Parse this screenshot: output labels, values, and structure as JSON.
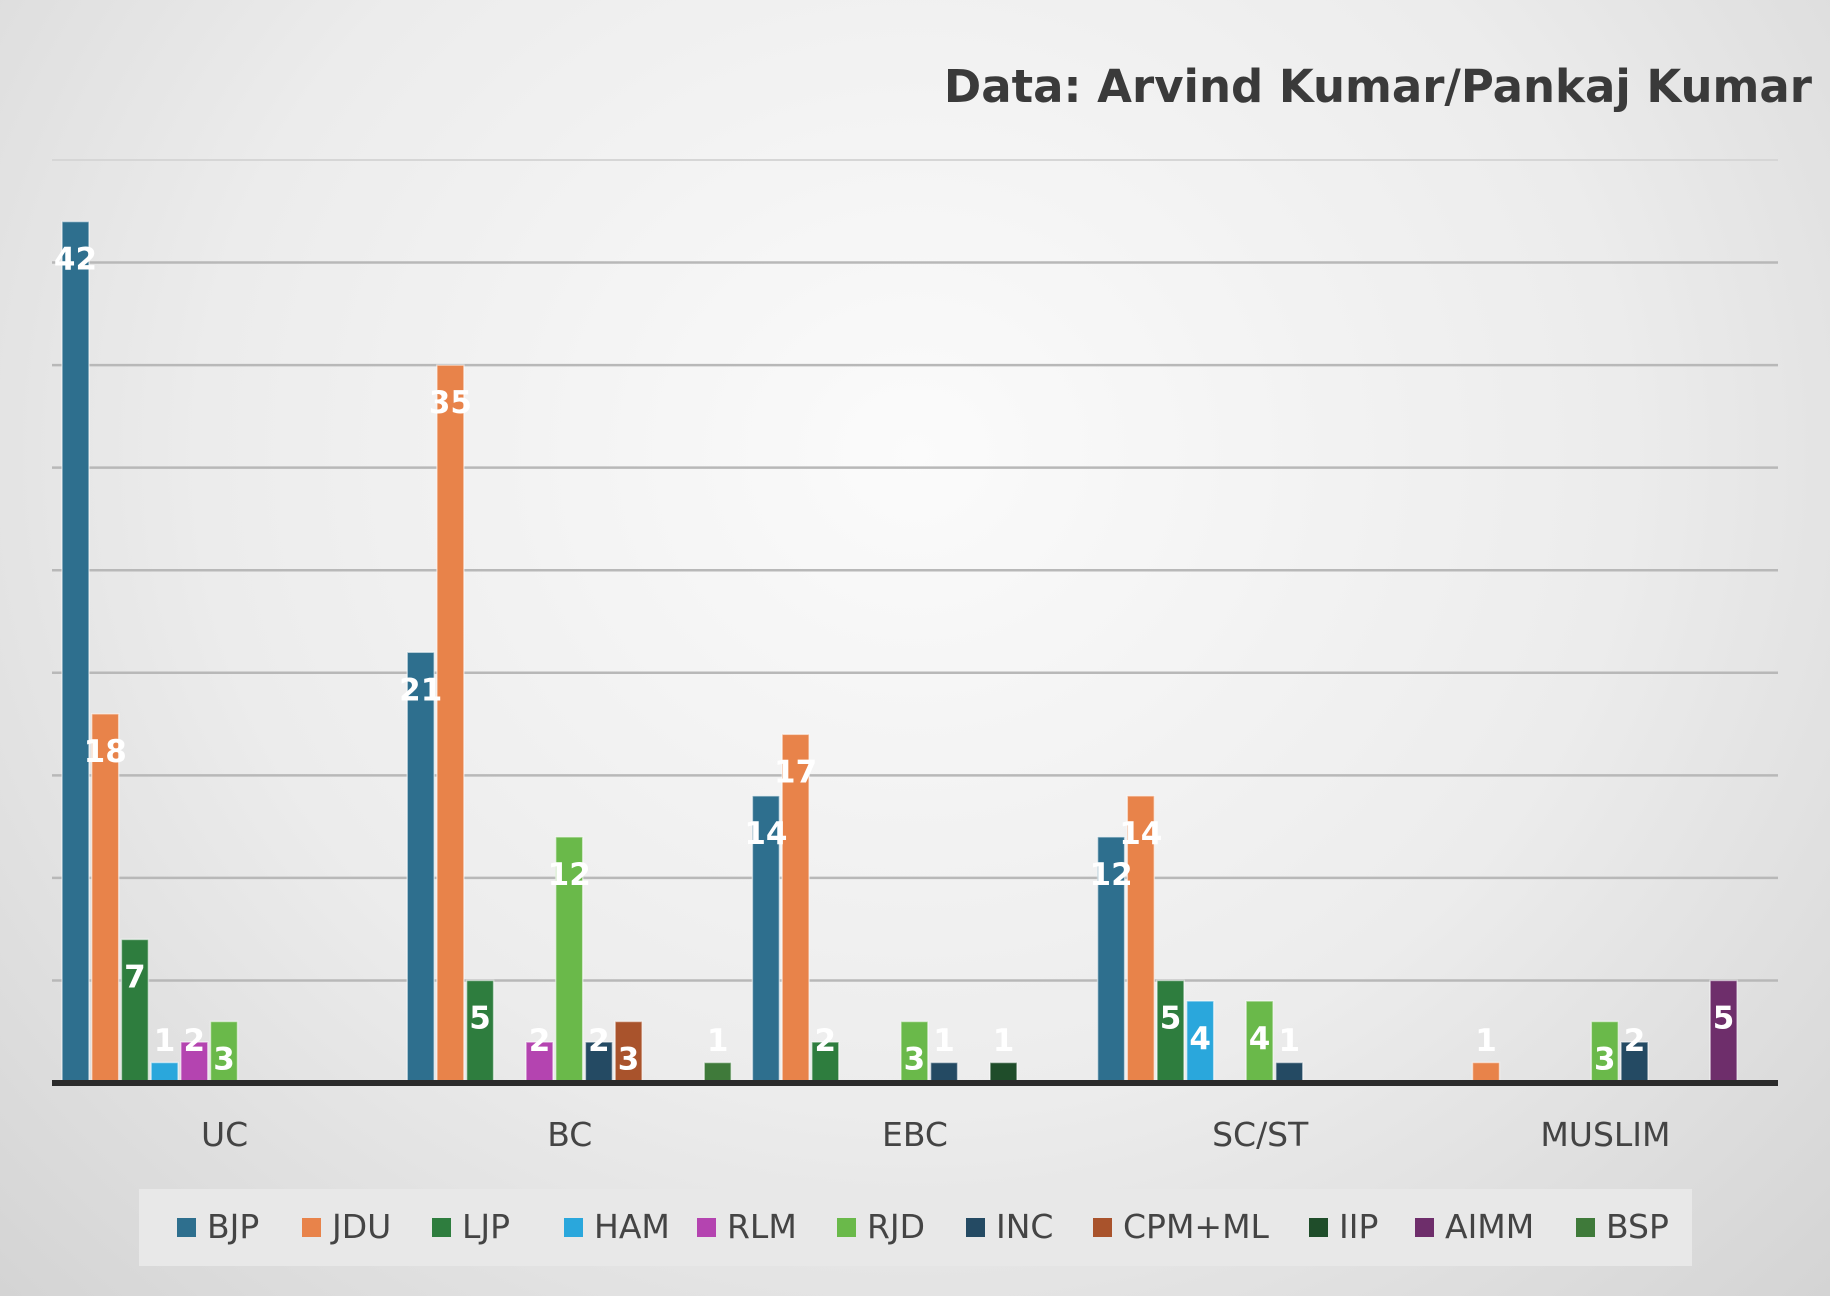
{
  "source_note": "Data: Arvind Kumar/Pankaj Kumar",
  "chart_data": {
    "type": "bar",
    "categories": [
      "UC",
      "BC",
      "EBC",
      "SC/ST",
      "MUSLIM"
    ],
    "ylim": [
      0,
      45
    ],
    "grid": true,
    "legend_position": "bottom",
    "series": [
      {
        "name": "BJP",
        "color": "#2e6f8e",
        "values": [
          42,
          21,
          14,
          12,
          null
        ]
      },
      {
        "name": "JDU",
        "color": "#e8834a",
        "values": [
          18,
          35,
          17,
          14,
          1
        ]
      },
      {
        "name": "LJP",
        "color": "#2e7d3e",
        "values": [
          7,
          5,
          2,
          5,
          null
        ]
      },
      {
        "name": "HAM",
        "color": "#2aa7dc",
        "values": [
          1,
          null,
          null,
          4,
          null
        ]
      },
      {
        "name": "RLM",
        "color": "#b444b0",
        "values": [
          2,
          2,
          null,
          null,
          null
        ]
      },
      {
        "name": "RJD",
        "color": "#6ab94a",
        "values": [
          3,
          12,
          3,
          4,
          3
        ]
      },
      {
        "name": "INC",
        "color": "#244a63",
        "values": [
          null,
          2,
          1,
          1,
          2
        ]
      },
      {
        "name": "CPM+ML",
        "color": "#a9532c",
        "values": [
          null,
          3,
          null,
          null,
          null
        ]
      },
      {
        "name": "IIP",
        "color": "#1f4d2a",
        "values": [
          null,
          null,
          1,
          null,
          null
        ]
      },
      {
        "name": "AIMM",
        "color": "#6e2e6b",
        "values": [
          null,
          null,
          null,
          null,
          5
        ]
      },
      {
        "name": "BSP",
        "color": "#3f7a3a",
        "values": [
          null,
          1,
          null,
          null,
          null
        ]
      }
    ]
  }
}
